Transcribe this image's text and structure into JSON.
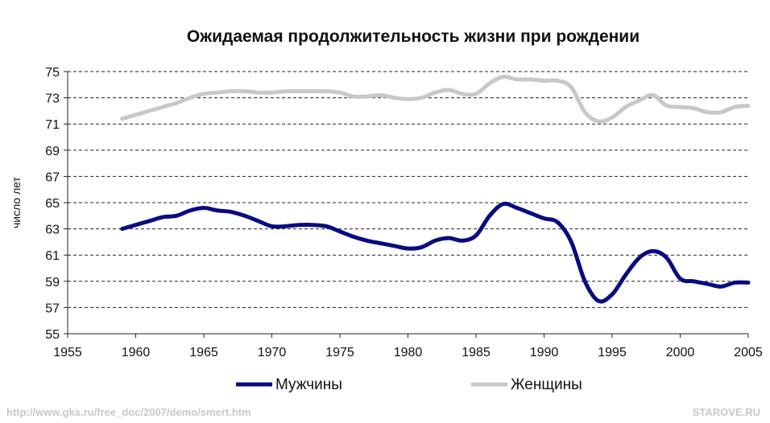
{
  "chart_data": {
    "type": "line",
    "title": "Ожидаемая продолжительность жизни при рождении",
    "ylabel": "число лет",
    "xlabel": "",
    "xlim": [
      1955,
      2005
    ],
    "ylim": [
      55,
      75
    ],
    "x_ticks": [
      1955,
      1960,
      1965,
      1970,
      1975,
      1980,
      1985,
      1990,
      1995,
      2000,
      2005
    ],
    "y_ticks": [
      55,
      57,
      59,
      61,
      63,
      65,
      67,
      69,
      71,
      73,
      75
    ],
    "grid": "horizontal dashed",
    "legend": "bottom",
    "series": [
      {
        "name": "Мужчины",
        "color": "#0a0a80",
        "x": [
          1959,
          1960,
          1961,
          1962,
          1963,
          1964,
          1965,
          1966,
          1967,
          1968,
          1969,
          1970,
          1971,
          1972,
          1973,
          1974,
          1975,
          1976,
          1977,
          1978,
          1979,
          1980,
          1981,
          1982,
          1983,
          1984,
          1985,
          1986,
          1987,
          1988,
          1989,
          1990,
          1991,
          1992,
          1993,
          1994,
          1995,
          1996,
          1997,
          1998,
          1999,
          2000,
          2001,
          2002,
          2003,
          2004,
          2005
        ],
        "values": [
          63.0,
          63.3,
          63.6,
          63.9,
          64.0,
          64.4,
          64.6,
          64.4,
          64.3,
          64.0,
          63.6,
          63.2,
          63.2,
          63.3,
          63.3,
          63.2,
          62.8,
          62.4,
          62.1,
          61.9,
          61.7,
          61.5,
          61.6,
          62.1,
          62.3,
          62.1,
          62.5,
          64.0,
          64.9,
          64.6,
          64.2,
          63.8,
          63.5,
          62.0,
          59.0,
          57.5,
          58.0,
          59.5,
          60.8,
          61.3,
          60.8,
          59.2,
          59.0,
          58.8,
          58.6,
          58.9,
          58.9
        ]
      },
      {
        "name": "Женщины",
        "color": "#c8c8c8",
        "x": [
          1959,
          1960,
          1961,
          1962,
          1963,
          1964,
          1965,
          1966,
          1967,
          1968,
          1969,
          1970,
          1971,
          1972,
          1973,
          1974,
          1975,
          1976,
          1977,
          1978,
          1979,
          1980,
          1981,
          1982,
          1983,
          1984,
          1985,
          1986,
          1987,
          1988,
          1989,
          1990,
          1991,
          1992,
          1993,
          1994,
          1995,
          1996,
          1997,
          1998,
          1999,
          2000,
          2001,
          2002,
          2003,
          2004,
          2005
        ],
        "values": [
          71.4,
          71.7,
          72.0,
          72.3,
          72.6,
          73.0,
          73.3,
          73.4,
          73.5,
          73.5,
          73.4,
          73.4,
          73.5,
          73.5,
          73.5,
          73.5,
          73.4,
          73.1,
          73.1,
          73.2,
          73.0,
          72.9,
          73.0,
          73.4,
          73.6,
          73.3,
          73.3,
          74.1,
          74.6,
          74.4,
          74.4,
          74.3,
          74.3,
          73.8,
          71.9,
          71.2,
          71.5,
          72.3,
          72.8,
          73.2,
          72.4,
          72.3,
          72.2,
          71.9,
          71.9,
          72.3,
          72.4
        ]
      }
    ]
  },
  "footer": {
    "source_url": "http://www.gks.ru/free_doc/2007/demo/smert.htm",
    "site": "STAROVE.RU"
  }
}
